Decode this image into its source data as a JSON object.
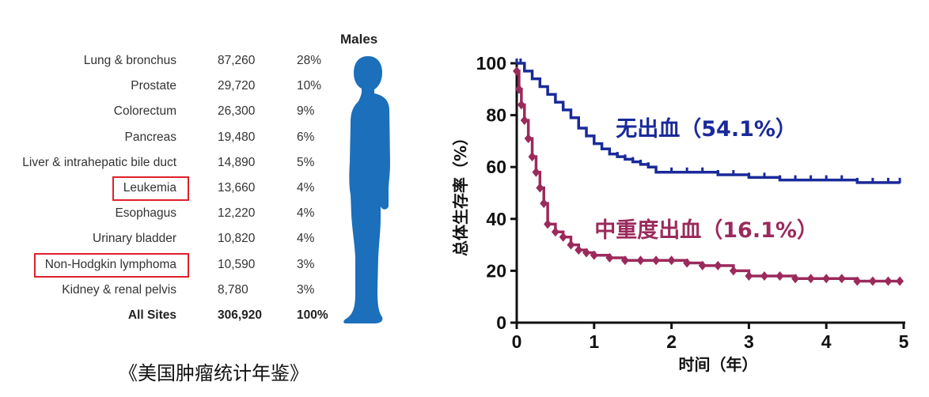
{
  "table": {
    "header": "Males",
    "rows": [
      {
        "site": "Lung & bronchus",
        "count": "87,260",
        "pct": "28%"
      },
      {
        "site": "Prostate",
        "count": "29,720",
        "pct": "10%"
      },
      {
        "site": "Colorectum",
        "count": "26,300",
        "pct": "9%"
      },
      {
        "site": "Pancreas",
        "count": "19,480",
        "pct": "6%"
      },
      {
        "site": "Liver & intrahepatic bile duct",
        "count": "14,890",
        "pct": "5%"
      },
      {
        "site": "Leukemia",
        "count": "13,660",
        "pct": "4%",
        "highlighted": true
      },
      {
        "site": "Esophagus",
        "count": "12,220",
        "pct": "4%"
      },
      {
        "site": "Urinary bladder",
        "count": "10,820",
        "pct": "4%"
      },
      {
        "site": "Non-Hodgkin lymphoma",
        "count": "10,590",
        "pct": "3%",
        "highlighted": true
      },
      {
        "site": "Kidney & renal pelvis",
        "count": "8,780",
        "pct": "3%"
      }
    ],
    "total": {
      "site": "All Sites",
      "count": "306,920",
      "pct": "100%"
    },
    "highlight_color": "#e0202a",
    "silhouette_color": "#1c6fba",
    "silhouette_icon": "male-silhouette-icon"
  },
  "source_caption": "《美国肿瘤统计年鉴》",
  "chart_data": {
    "type": "line",
    "subtype": "kaplan-meier step curves",
    "xlabel": "时间（年）",
    "ylabel": "总体生存率（%）",
    "xlim": [
      0,
      5
    ],
    "ylim": [
      0,
      100
    ],
    "xticks": [
      0,
      1,
      2,
      3,
      4,
      5
    ],
    "yticks": [
      0,
      20,
      40,
      60,
      80,
      100
    ],
    "grid": false,
    "series": [
      {
        "name": "无出血（54.1%）",
        "color": "#1a2a9a",
        "marker": "tick",
        "x": [
          0,
          0.05,
          0.1,
          0.2,
          0.3,
          0.4,
          0.5,
          0.6,
          0.7,
          0.8,
          0.9,
          1.0,
          1.1,
          1.2,
          1.3,
          1.4,
          1.5,
          1.6,
          1.7,
          1.8,
          2.0,
          2.2,
          2.4,
          2.6,
          2.8,
          3.0,
          3.2,
          3.4,
          3.6,
          3.8,
          4.0,
          4.2,
          4.4,
          4.6,
          4.8,
          4.95
        ],
        "y": [
          100,
          100,
          97,
          94,
          91,
          88,
          85,
          82,
          79,
          75,
          72,
          69,
          67,
          65,
          64,
          63,
          62,
          61,
          60,
          58,
          58,
          58,
          58,
          57,
          57,
          56,
          56,
          55,
          55,
          55,
          55,
          55,
          54,
          54,
          54,
          54
        ]
      },
      {
        "name": "中重度出血（16.1%）",
        "color": "#9b2a5c",
        "marker": "diamond",
        "x": [
          0,
          0.03,
          0.06,
          0.1,
          0.15,
          0.2,
          0.25,
          0.3,
          0.35,
          0.4,
          0.5,
          0.6,
          0.7,
          0.8,
          0.9,
          1.0,
          1.2,
          1.4,
          1.6,
          1.8,
          2.0,
          2.2,
          2.4,
          2.6,
          2.8,
          3.0,
          3.2,
          3.4,
          3.6,
          3.8,
          4.0,
          4.2,
          4.4,
          4.6,
          4.8,
          4.95
        ],
        "y": [
          97,
          90,
          84,
          78,
          71,
          64,
          58,
          52,
          46,
          38,
          35,
          33,
          30,
          28,
          27,
          26,
          25,
          24,
          24,
          24,
          24,
          23,
          22,
          22,
          20,
          18,
          18,
          18,
          17,
          17,
          17,
          17,
          16,
          16,
          16,
          16
        ]
      }
    ]
  }
}
